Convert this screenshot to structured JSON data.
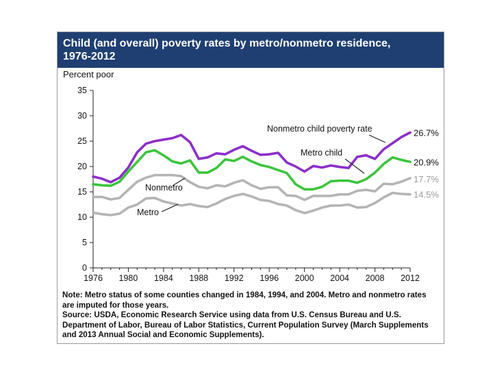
{
  "chart_data": {
    "type": "line",
    "title_lines": [
      "Child (and overall) poverty rates by metro/nonmetro residence,",
      "1976-2012"
    ],
    "title": "Child (and overall) poverty rates by metro/nonmetro residence, 1976-2012",
    "ylabel": "Percent poor",
    "xlabel": "",
    "ylim": [
      0,
      35
    ],
    "xlim": [
      1976,
      2012
    ],
    "yticks": [
      "0",
      "5",
      "10",
      "15",
      "20",
      "25",
      "30",
      "35"
    ],
    "xticks": [
      "1976",
      "1980",
      "1984",
      "1988",
      "1992",
      "1996",
      "2000",
      "2004",
      "2008",
      "2012"
    ],
    "grid": false,
    "x": [
      1976,
      1977,
      1978,
      1979,
      1980,
      1981,
      1982,
      1983,
      1984,
      1985,
      1986,
      1987,
      1988,
      1989,
      1990,
      1991,
      1992,
      1993,
      1994,
      1995,
      1996,
      1997,
      1998,
      1999,
      2000,
      2001,
      2002,
      2003,
      2004,
      2005,
      2006,
      2007,
      2008,
      2009,
      2010,
      2011,
      2012
    ],
    "series": [
      {
        "name": "Nonmetro child poverty rate",
        "color": "#8b2fc9",
        "end_label": "26.7%",
        "values": [
          18.0,
          17.6,
          16.9,
          17.8,
          19.8,
          22.8,
          24.5,
          25.0,
          25.3,
          25.6,
          26.2,
          24.8,
          21.5,
          21.8,
          22.6,
          22.4,
          23.3,
          24.0,
          23.1,
          22.3,
          22.4,
          22.7,
          20.8,
          20.0,
          19.0,
          20.1,
          19.8,
          20.2,
          19.9,
          19.7,
          21.9,
          22.2,
          21.5,
          23.4,
          24.6,
          25.8,
          26.7
        ]
      },
      {
        "name": "Metro child",
        "color": "#3cc43c",
        "end_label": "20.9%",
        "values": [
          16.5,
          16.3,
          16.2,
          17.0,
          19.0,
          20.9,
          22.8,
          23.2,
          22.2,
          21.0,
          20.6,
          21.2,
          18.8,
          18.8,
          19.7,
          21.4,
          21.1,
          21.9,
          21.0,
          20.3,
          19.9,
          19.3,
          18.7,
          16.5,
          15.5,
          15.5,
          16.0,
          17.1,
          17.2,
          17.2,
          16.8,
          17.5,
          18.8,
          20.5,
          21.8,
          21.3,
          20.9
        ]
      },
      {
        "name": "Nonmetro",
        "color": "#b4b4b4",
        "end_label": "17.7%",
        "values": [
          14.0,
          14.0,
          13.5,
          13.8,
          15.4,
          17.0,
          17.8,
          18.3,
          18.3,
          18.3,
          18.1,
          16.9,
          16.0,
          15.7,
          16.3,
          16.1,
          16.8,
          17.3,
          16.3,
          15.6,
          15.9,
          15.9,
          14.3,
          14.2,
          13.4,
          14.2,
          14.2,
          14.2,
          14.5,
          14.5,
          15.2,
          15.4,
          15.1,
          16.6,
          16.5,
          17.0,
          17.7
        ]
      },
      {
        "name": "Metro",
        "color": "#b4b4b4",
        "end_label": "14.5%",
        "values": [
          10.9,
          10.6,
          10.4,
          10.7,
          11.9,
          12.5,
          13.7,
          13.8,
          13.1,
          12.7,
          12.3,
          12.6,
          12.2,
          12.0,
          12.7,
          13.6,
          14.2,
          14.6,
          14.1,
          13.4,
          13.2,
          12.6,
          12.3,
          11.4,
          10.8,
          11.3,
          11.9,
          12.3,
          12.3,
          12.5,
          11.9,
          12.0,
          12.8,
          13.9,
          14.8,
          14.6,
          14.5
        ]
      }
    ],
    "annotations": [
      "Nonmetro child poverty rate",
      "Metro child",
      "Nonmetro",
      "Metro"
    ]
  },
  "notes": {
    "note": "Note: Metro status of some counties changed in 1984, 1994, and 2004. Metro and nonmetro rates are imputed for those years.",
    "source": "Source: USDA, Economic Research Service using data from U.S. Census Bureau and U.S. Department of Labor, Bureau of Labor Statistics, Current Population Survey (March Supplements and 2013 Annual Social and Economic Supplements)."
  }
}
